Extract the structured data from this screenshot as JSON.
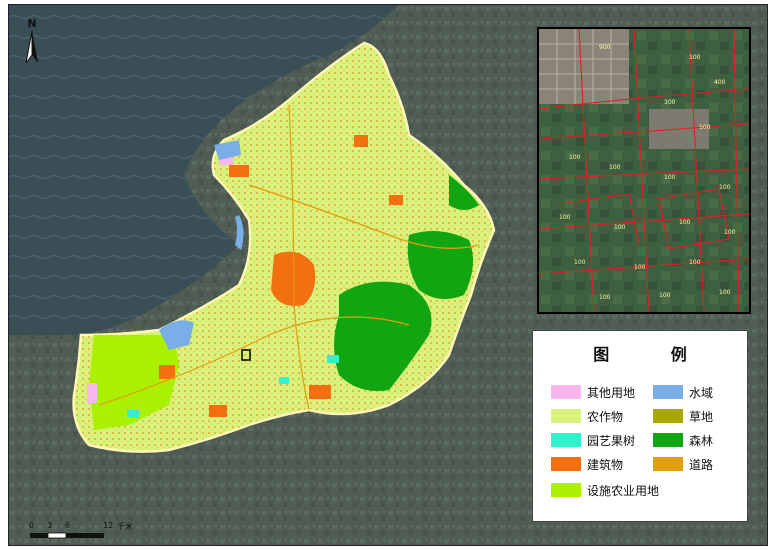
{
  "map": {
    "north_label": "N",
    "legend": {
      "title": "图 例",
      "items": [
        {
          "key": "other",
          "label": "其他用地",
          "color": "#f7b6ee"
        },
        {
          "key": "water",
          "label": "水域",
          "color": "#79aee6"
        },
        {
          "key": "crop",
          "label": "农作物",
          "color": "#d9f27c"
        },
        {
          "key": "grass",
          "label": "草地",
          "color": "#a8a800"
        },
        {
          "key": "orchard",
          "label": "园艺果树",
          "color": "#2ef2cc"
        },
        {
          "key": "forest",
          "label": "森林",
          "color": "#12a512"
        },
        {
          "key": "building",
          "label": "建筑物",
          "color": "#f27010"
        },
        {
          "key": "road",
          "label": "道路",
          "color": "#e39e0e"
        },
        {
          "key": "facility",
          "label": "设施农业用地",
          "color": "#aaf000"
        }
      ]
    },
    "scale": {
      "ticks": [
        "0",
        "3",
        "6",
        "12"
      ],
      "unit": "千米"
    },
    "inset_labels": [
      "100",
      "300",
      "400",
      "500",
      "900"
    ]
  }
}
